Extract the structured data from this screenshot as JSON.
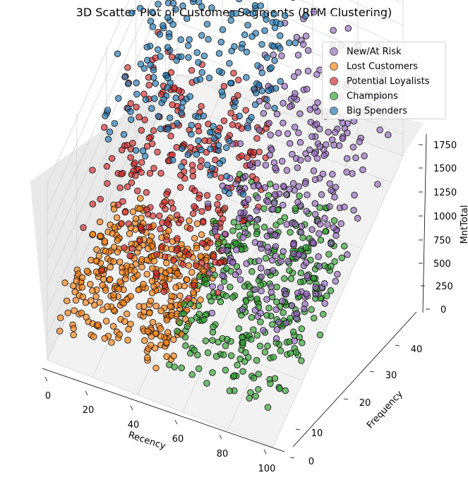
{
  "chart_data": {
    "type": "scatter",
    "projection": "3d",
    "title": "3D Scatter Plot of Customer Segments (RFM Clustering)",
    "xlabel": "Recency",
    "ylabel": "Frequency",
    "zlabel": "MntTotal",
    "xlim": [
      0,
      100
    ],
    "ylim": [
      0,
      44
    ],
    "zlim": [
      0,
      1800
    ],
    "xticks": [
      0,
      20,
      40,
      60,
      80,
      100
    ],
    "yticks": [
      0,
      10,
      20,
      30,
      40
    ],
    "zticks": [
      0,
      250,
      500,
      750,
      1000,
      1250,
      1500,
      1750
    ],
    "grid": true,
    "legend_position": "top-right",
    "series": [
      {
        "name": "New/At Risk",
        "color": "#9467bd",
        "recency_range": [
          50,
          99
        ],
        "frequency_range": [
          12,
          44
        ],
        "mnttotal_range": [
          0,
          1400
        ]
      },
      {
        "name": "Lost Customers",
        "color": "#ff7f0e",
        "recency_range": [
          0,
          50
        ],
        "frequency_range": [
          4,
          22
        ],
        "mnttotal_range": [
          0,
          400
        ]
      },
      {
        "name": "Potential Loyalists",
        "color": "#d62728",
        "recency_range": [
          0,
          60
        ],
        "frequency_range": [
          10,
          32
        ],
        "mnttotal_range": [
          300,
          1300
        ]
      },
      {
        "name": "Champions",
        "color": "#2ca02c",
        "recency_range": [
          48,
          99
        ],
        "frequency_range": [
          4,
          28
        ],
        "mnttotal_range": [
          0,
          700
        ]
      },
      {
        "name": "Big Spenders",
        "color": "#1f77b4",
        "recency_range": [
          0,
          60
        ],
        "frequency_range": [
          18,
          44
        ],
        "mnttotal_range": [
          900,
          1800
        ]
      }
    ]
  }
}
